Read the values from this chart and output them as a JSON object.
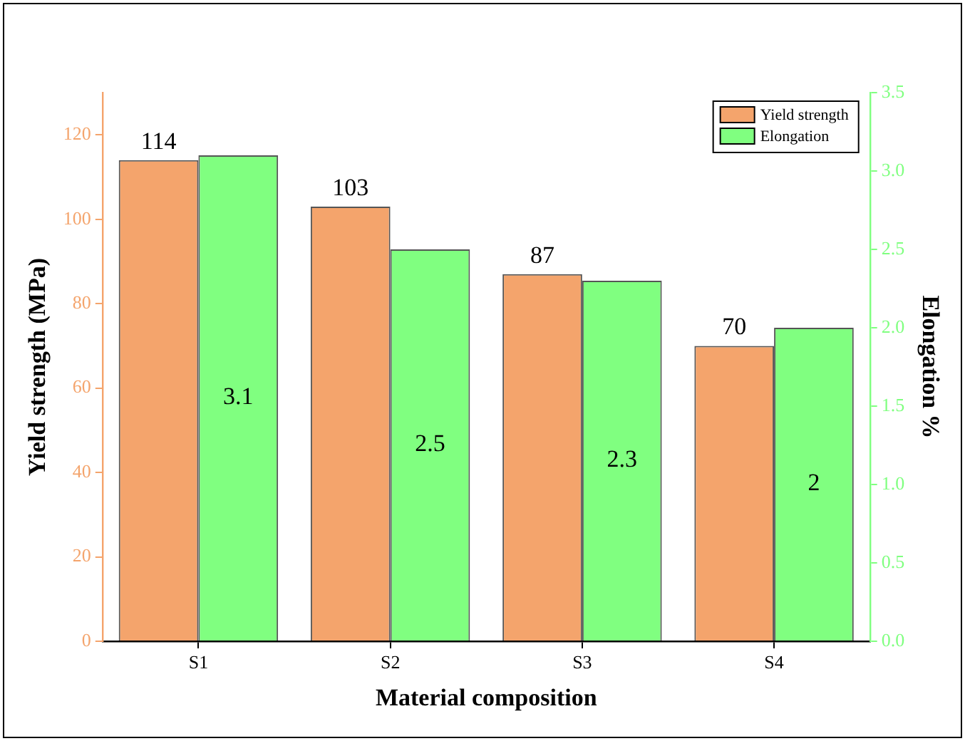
{
  "chart_data": {
    "type": "bar",
    "xlabel": "Material composition",
    "ylabel": "Yield strength (MPa)",
    "y2label": "Elongation %",
    "categories": [
      "S1",
      "S2",
      "S3",
      "S4"
    ],
    "series": [
      {
        "name": "Yield strength",
        "color": "#f4a46c",
        "values": [
          114,
          103,
          87,
          70
        ]
      },
      {
        "name": "Elongation",
        "color": "#80ff80",
        "values": [
          3.1,
          2.5,
          2.3,
          2
        ],
        "axis": "y2"
      }
    ],
    "ylim": [
      0,
      130
    ],
    "yticks": [
      0,
      20,
      40,
      60,
      80,
      100,
      120
    ],
    "y2lim": [
      0,
      3.5
    ],
    "y2ticks": [
      {
        "value": 0,
        "label": "0.0"
      },
      0.5,
      {
        "value": 1,
        "label": "1.0"
      },
      1.5,
      {
        "value": 2,
        "label": "2.0"
      },
      2.5,
      {
        "value": 3,
        "label": "3.0"
      },
      3.5
    ],
    "data_labels": true,
    "legend": "top right"
  }
}
